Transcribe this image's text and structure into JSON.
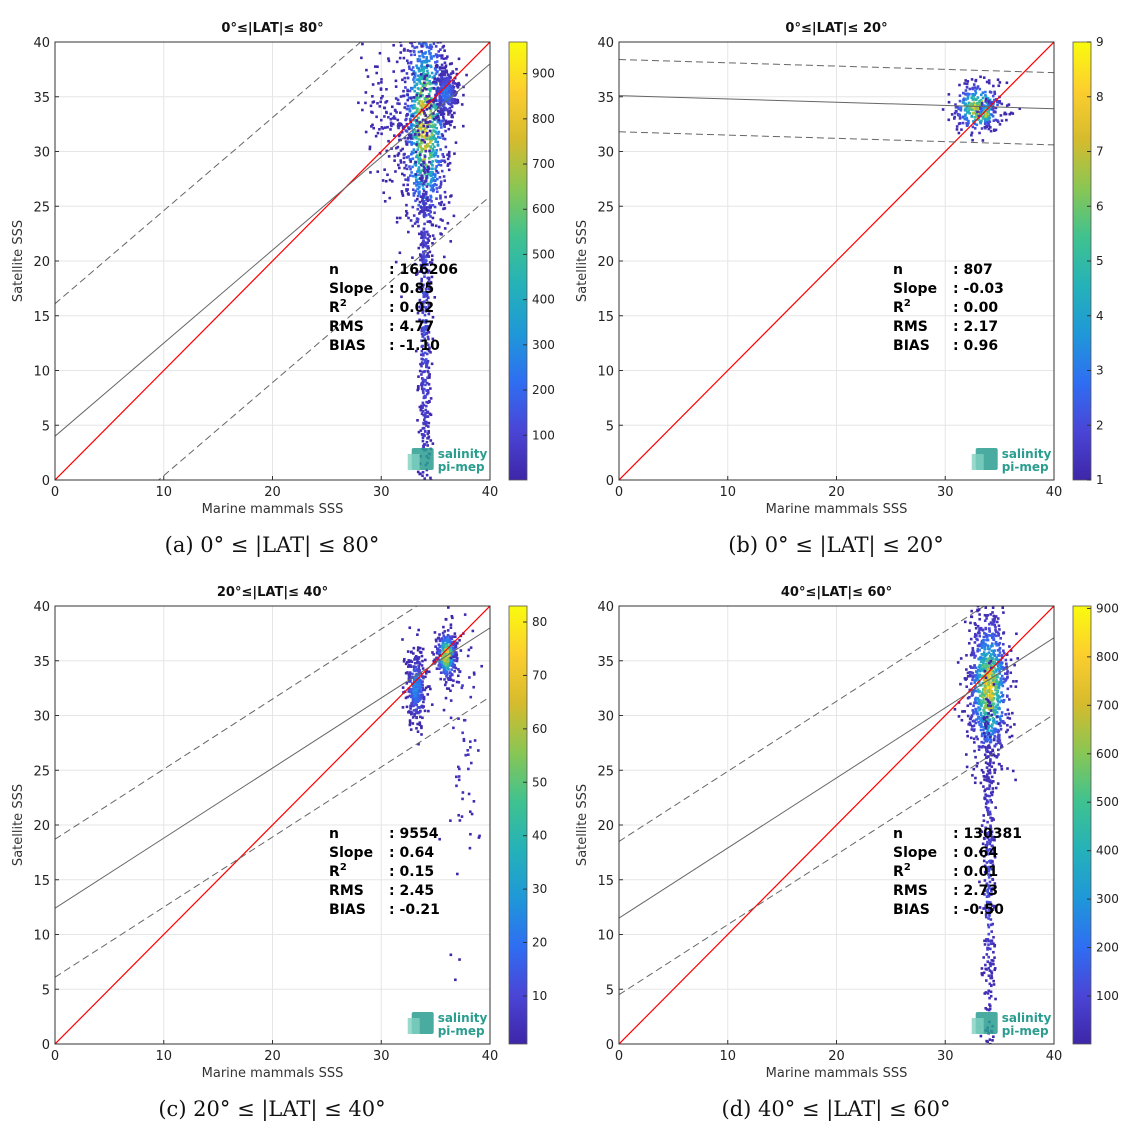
{
  "colors": {
    "one_to_one_line": "#ff0000",
    "regression_line": "#666666",
    "grid": "#e6e6e6",
    "logo": "#2a9d8f",
    "colormap": [
      "#3e26a8",
      "#4a45d6",
      "#2f6ef2",
      "#1f98d8",
      "#25b2b8",
      "#40c28f",
      "#8ac653",
      "#d6bb2d",
      "#fcce2e",
      "#f9fb0e"
    ]
  },
  "logo": {
    "line1": "salinity",
    "line2": "pi-mep"
  },
  "chart_data": [
    {
      "type": "heatmap",
      "title": "0°≤|LAT|≤ 80°",
      "caption": "(a) 0° ≤ |LAT| ≤ 80°",
      "xlabel": "Marine mammals SSS",
      "ylabel": "Satellite SSS",
      "xlim": [
        0,
        40
      ],
      "ylim": [
        0,
        40
      ],
      "xticks": [
        0,
        10,
        20,
        30,
        40
      ],
      "yticks": [
        0,
        5,
        10,
        15,
        20,
        25,
        30,
        35,
        40
      ],
      "grid": true,
      "colorbar": {
        "min": 1,
        "max": 970,
        "ticks": [
          100,
          200,
          300,
          400,
          500,
          600,
          700,
          800,
          900
        ]
      },
      "regression": {
        "slope": 0.85,
        "intercept": 4.0,
        "band_offset": 12.1
      },
      "stats": [
        {
          "label": "n",
          "value": ": 166206"
        },
        {
          "label": "Slope",
          "value": ": 0.85"
        },
        {
          "label": "R2",
          "value": ": 0.02"
        },
        {
          "label": "RMS",
          "value": ": 4.77"
        },
        {
          "label": "BIAS",
          "value": ": -1.10"
        }
      ],
      "clusters": [
        {
          "x": 34.0,
          "y": 32.5,
          "sx": 1.1,
          "sy": 5.5,
          "n": 1000,
          "peak": 970
        },
        {
          "x": 34.0,
          "y": 15.0,
          "sx": 0.3,
          "sy": 11.0,
          "n": 500,
          "peak": 180
        },
        {
          "x": 36.0,
          "y": 35.3,
          "sx": 0.6,
          "sy": 1.2,
          "n": 300,
          "peak": 300
        },
        {
          "x": 31.0,
          "y": 33.5,
          "sx": 1.5,
          "sy": 3.0,
          "n": 150,
          "peak": 60
        }
      ]
    },
    {
      "type": "heatmap",
      "title": "0°≤|LAT|≤ 20°",
      "caption": "(b) 0° ≤ |LAT| ≤ 20°",
      "xlabel": "Marine mammals SSS",
      "ylabel": "Satellite SSS",
      "xlim": [
        0,
        40
      ],
      "ylim": [
        0,
        40
      ],
      "xticks": [
        0,
        10,
        20,
        30,
        40
      ],
      "yticks": [
        0,
        5,
        10,
        15,
        20,
        25,
        30,
        35,
        40
      ],
      "grid": true,
      "colorbar": {
        "min": 1,
        "max": 9,
        "ticks": [
          1,
          2,
          3,
          4,
          5,
          6,
          7,
          8,
          9
        ]
      },
      "regression": {
        "slope": -0.03,
        "intercept": 35.1,
        "band_offset": 3.3
      },
      "stats": [
        {
          "label": "n",
          "value": ": 807"
        },
        {
          "label": "Slope",
          "value": ": -0.03"
        },
        {
          "label": "R2",
          "value": ": 0.00"
        },
        {
          "label": "RMS",
          "value": ": 2.17"
        },
        {
          "label": "BIAS",
          "value": ": 0.96"
        }
      ],
      "clusters": [
        {
          "x": 33.0,
          "y": 34.0,
          "sx": 1.2,
          "sy": 1.2,
          "n": 300,
          "peak": 9
        },
        {
          "x": 33.8,
          "y": 33.5,
          "sx": 0.4,
          "sy": 0.6,
          "n": 80,
          "peak": 9
        }
      ]
    },
    {
      "type": "heatmap",
      "title": "20°≤|LAT|≤ 40°",
      "caption": "(c) 20° ≤ |LAT| ≤ 40°",
      "xlabel": "Marine mammals SSS",
      "ylabel": "Satellite SSS",
      "xlim": [
        0,
        40
      ],
      "ylim": [
        0,
        40
      ],
      "xticks": [
        0,
        10,
        20,
        30,
        40
      ],
      "yticks": [
        0,
        5,
        10,
        15,
        20,
        25,
        30,
        35,
        40
      ],
      "grid": true,
      "colorbar": {
        "min": 1,
        "max": 83,
        "ticks": [
          10,
          20,
          30,
          40,
          50,
          60,
          70,
          80
        ]
      },
      "regression": {
        "slope": 0.64,
        "intercept": 12.4,
        "band_offset": 6.3
      },
      "stats": [
        {
          "label": "n",
          "value": ": 9554"
        },
        {
          "label": "Slope",
          "value": ": 0.64"
        },
        {
          "label": "R2",
          "value": ": 0.15"
        },
        {
          "label": "RMS",
          "value": ": 2.45"
        },
        {
          "label": "BIAS",
          "value": ": -0.21"
        }
      ],
      "clusters": [
        {
          "x": 33.2,
          "y": 32.5,
          "sx": 0.5,
          "sy": 1.8,
          "n": 300,
          "peak": 30
        },
        {
          "x": 36.0,
          "y": 35.5,
          "sx": 0.5,
          "sy": 1.2,
          "n": 300,
          "peak": 83
        },
        {
          "x": 37.5,
          "y": 30.0,
          "sx": 1.0,
          "sy": 8.0,
          "n": 80,
          "peak": 8
        }
      ]
    },
    {
      "type": "heatmap",
      "title": "40°≤|LAT|≤ 60°",
      "caption": "(d) 40° ≤ |LAT| ≤ 60°",
      "xlabel": "Marine mammals SSS",
      "ylabel": "Satellite SSS",
      "xlim": [
        0,
        40
      ],
      "ylim": [
        0,
        40
      ],
      "xticks": [
        0,
        10,
        20,
        30,
        40
      ],
      "yticks": [
        0,
        5,
        10,
        15,
        20,
        25,
        30,
        35,
        40
      ],
      "grid": true,
      "colorbar": {
        "min": 1,
        "max": 905,
        "ticks": [
          100,
          200,
          300,
          400,
          500,
          600,
          700,
          800,
          900
        ]
      },
      "regression": {
        "slope": 0.64,
        "intercept": 11.5,
        "band_offset": 7.0
      },
      "stats": [
        {
          "label": "n",
          "value": ": 130381"
        },
        {
          "label": "Slope",
          "value": ": 0.64"
        },
        {
          "label": "R2",
          "value": ": 0.01"
        },
        {
          "label": "RMS",
          "value": ": 2.73"
        },
        {
          "label": "BIAS",
          "value": ": -0.50"
        }
      ],
      "clusters": [
        {
          "x": 34.0,
          "y": 32.5,
          "sx": 1.0,
          "sy": 3.5,
          "n": 900,
          "peak": 905
        },
        {
          "x": 34.0,
          "y": 15.0,
          "sx": 0.3,
          "sy": 9.0,
          "n": 350,
          "peak": 150
        }
      ]
    }
  ]
}
